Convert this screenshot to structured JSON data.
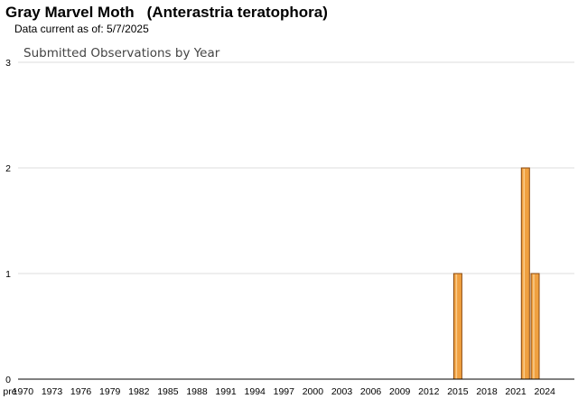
{
  "header": {
    "common_name": "Gray Marvel Moth",
    "scientific_name": "(Anterastria teratophora)",
    "data_current": "Data current as of: 5/7/2025"
  },
  "colors": {
    "bar_fill": "#f0a040",
    "bar_stroke": "#8a4a10",
    "gridline": "#dddddd",
    "axis": "#000000"
  },
  "chart_data": {
    "type": "bar",
    "title": "Submitted Observations by Year",
    "xlabel": "",
    "ylabel": "",
    "ylim": [
      0,
      3
    ],
    "y_ticks": [
      0,
      1,
      2,
      3
    ],
    "grid": true,
    "legend": "none",
    "x_tick_labels": [
      "pre",
      "1970",
      "1973",
      "1976",
      "1979",
      "1982",
      "1985",
      "1988",
      "1991",
      "1994",
      "1997",
      "2000",
      "2003",
      "2006",
      "2009",
      "2012",
      "2015",
      "2018",
      "2021",
      "2024"
    ],
    "categories": [
      "pre",
      "1970",
      "1971",
      "1972",
      "1973",
      "1974",
      "1975",
      "1976",
      "1977",
      "1978",
      "1979",
      "1980",
      "1981",
      "1982",
      "1983",
      "1984",
      "1985",
      "1986",
      "1987",
      "1988",
      "1989",
      "1990",
      "1991",
      "1992",
      "1993",
      "1994",
      "1995",
      "1996",
      "1997",
      "1998",
      "1999",
      "2000",
      "2001",
      "2002",
      "2003",
      "2004",
      "2005",
      "2006",
      "2007",
      "2008",
      "2009",
      "2010",
      "2011",
      "2012",
      "2013",
      "2014",
      "2015",
      "2016",
      "2017",
      "2018",
      "2019",
      "2020",
      "2021",
      "2022",
      "2023",
      "2024",
      "2025"
    ],
    "values": [
      0,
      0,
      0,
      0,
      0,
      0,
      0,
      0,
      0,
      0,
      0,
      0,
      0,
      0,
      0,
      0,
      0,
      0,
      0,
      0,
      0,
      0,
      0,
      0,
      0,
      0,
      0,
      0,
      0,
      0,
      0,
      0,
      0,
      0,
      0,
      0,
      0,
      0,
      0,
      0,
      0,
      0,
      0,
      0,
      0,
      0,
      1,
      0,
      0,
      0,
      0,
      0,
      0,
      2,
      1,
      0,
      0
    ]
  }
}
